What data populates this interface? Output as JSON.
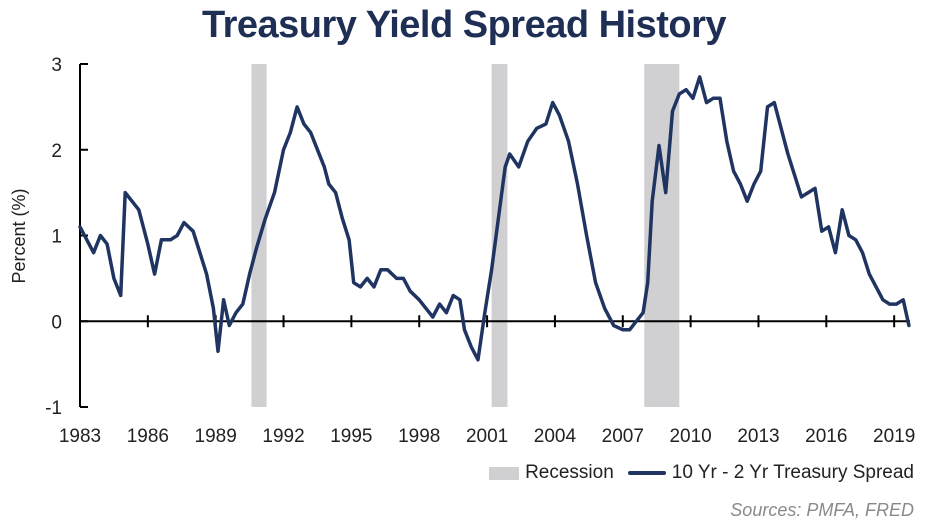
{
  "chart_data": {
    "type": "line",
    "title": "Treasury Yield Spread History",
    "ylabel": "Percent (%)",
    "xlabel": "",
    "ylim": [
      -1,
      3
    ],
    "xlim": [
      1983,
      2019.7
    ],
    "yticks": [
      -1,
      0,
      1,
      2,
      3
    ],
    "xticks": [
      "1983",
      "1986",
      "1989",
      "1992",
      "1995",
      "1998",
      "2001",
      "2004",
      "2007",
      "2010",
      "2013",
      "2016",
      "2019"
    ],
    "legend_position": "bottom-right",
    "grid": false,
    "recessions": {
      "name": "Recession",
      "color": "#d0d0d2",
      "periods": [
        [
          1990.58,
          1991.25
        ],
        [
          2001.2,
          2001.9
        ],
        [
          2007.95,
          2009.5
        ]
      ]
    },
    "series": [
      {
        "name": "10 Yr - 2 Yr Treasury Spread",
        "color": "#1f3461",
        "x": [
          1983.0,
          1983.3,
          1983.6,
          1983.9,
          1984.2,
          1984.5,
          1984.8,
          1985.0,
          1985.3,
          1985.6,
          1986.0,
          1986.3,
          1986.6,
          1987.0,
          1987.3,
          1987.6,
          1988.0,
          1988.3,
          1988.6,
          1988.9,
          1989.1,
          1989.35,
          1989.6,
          1989.9,
          1990.2,
          1990.5,
          1990.8,
          1991.2,
          1991.6,
          1992.0,
          1992.3,
          1992.6,
          1992.9,
          1993.2,
          1993.5,
          1993.8,
          1994.0,
          1994.3,
          1994.6,
          1994.9,
          1995.1,
          1995.4,
          1995.7,
          1996.0,
          1996.3,
          1996.6,
          1997.0,
          1997.3,
          1997.6,
          1998.0,
          1998.3,
          1998.6,
          1998.9,
          1999.2,
          1999.5,
          1999.8,
          2000.0,
          2000.3,
          2000.6,
          2000.9,
          2001.2,
          2001.5,
          2001.8,
          2002.0,
          2002.4,
          2002.8,
          2003.2,
          2003.6,
          2003.9,
          2004.2,
          2004.6,
          2005.0,
          2005.4,
          2005.8,
          2006.2,
          2006.6,
          2007.0,
          2007.3,
          2007.6,
          2007.9,
          2008.1,
          2008.3,
          2008.6,
          2008.9,
          2009.2,
          2009.5,
          2009.8,
          2010.1,
          2010.4,
          2010.7,
          2011.0,
          2011.3,
          2011.6,
          2011.9,
          2012.2,
          2012.5,
          2012.8,
          2013.1,
          2013.4,
          2013.7,
          2014.0,
          2014.3,
          2014.6,
          2014.9,
          2015.2,
          2015.5,
          2015.8,
          2016.1,
          2016.4,
          2016.7,
          2017.0,
          2017.3,
          2017.6,
          2017.9,
          2018.2,
          2018.5,
          2018.8,
          2019.1,
          2019.4,
          2019.65
        ],
        "values": [
          1.1,
          0.95,
          0.8,
          1.0,
          0.9,
          0.5,
          0.3,
          1.5,
          1.4,
          1.3,
          0.9,
          0.55,
          0.95,
          0.95,
          1.0,
          1.15,
          1.05,
          0.8,
          0.55,
          0.15,
          -0.35,
          0.25,
          -0.05,
          0.1,
          0.2,
          0.55,
          0.85,
          1.2,
          1.5,
          2.0,
          2.2,
          2.5,
          2.3,
          2.2,
          2.0,
          1.8,
          1.6,
          1.5,
          1.2,
          0.95,
          0.45,
          0.4,
          0.5,
          0.4,
          0.6,
          0.6,
          0.5,
          0.5,
          0.35,
          0.25,
          0.15,
          0.05,
          0.2,
          0.1,
          0.3,
          0.25,
          -0.1,
          -0.3,
          -0.45,
          0.1,
          0.6,
          1.2,
          1.8,
          1.95,
          1.8,
          2.1,
          2.25,
          2.3,
          2.55,
          2.4,
          2.1,
          1.6,
          1.0,
          0.45,
          0.15,
          -0.05,
          -0.1,
          -0.1,
          0.0,
          0.1,
          0.45,
          1.4,
          2.05,
          1.5,
          2.45,
          2.65,
          2.7,
          2.6,
          2.85,
          2.55,
          2.6,
          2.6,
          2.1,
          1.75,
          1.6,
          1.4,
          1.6,
          1.75,
          2.5,
          2.55,
          2.25,
          1.95,
          1.7,
          1.45,
          1.5,
          1.55,
          1.05,
          1.1,
          0.8,
          1.3,
          1.0,
          0.95,
          0.8,
          0.55,
          0.4,
          0.25,
          0.2,
          0.2,
          0.25,
          -0.05
        ]
      }
    ]
  },
  "legend": {
    "recession_label": "Recession",
    "series_label": "10 Yr - 2 Yr Treasury Spread"
  },
  "source": "Sources: PMFA, FRED"
}
